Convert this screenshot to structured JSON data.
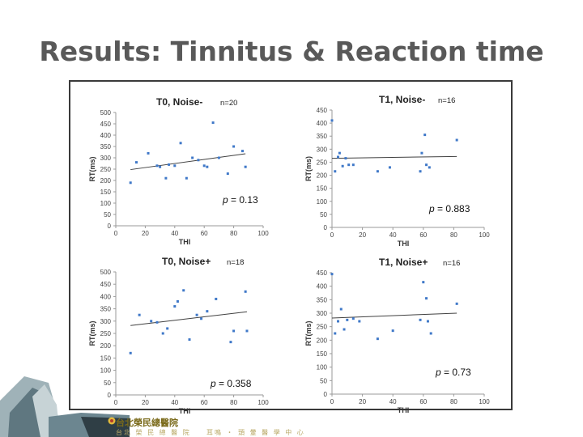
{
  "slide": {
    "title": "Results: Tinnitus & Reaction time",
    "hospital_name": "台北榮民總醫院",
    "hospital_sub": "台北 榮 民 總 醫 院",
    "hospital_sub2": "耳鳴 ・ 頭 暈 醫 學 中 心"
  },
  "chart_data": [
    {
      "type": "scatter",
      "title": "T0, Noise-",
      "n_label": "n=20",
      "p_prefix": "p",
      "p_value": "= 0.13",
      "xlabel": "THI",
      "ylabel": "RT(ms)",
      "xlim": [
        0,
        100
      ],
      "ylim": [
        0,
        500
      ],
      "xticks": [
        0,
        20,
        40,
        60,
        80,
        100
      ],
      "yticks": [
        0,
        50,
        100,
        150,
        200,
        250,
        300,
        350,
        400,
        450,
        500
      ],
      "points": [
        [
          10,
          190
        ],
        [
          14,
          280
        ],
        [
          22,
          320
        ],
        [
          28,
          265
        ],
        [
          30,
          260
        ],
        [
          34,
          210
        ],
        [
          36,
          270
        ],
        [
          40,
          265
        ],
        [
          44,
          365
        ],
        [
          48,
          210
        ],
        [
          52,
          300
        ],
        [
          56,
          290
        ],
        [
          60,
          265
        ],
        [
          62,
          260
        ],
        [
          66,
          455
        ],
        [
          70,
          300
        ],
        [
          76,
          230
        ],
        [
          80,
          350
        ],
        [
          86,
          330
        ],
        [
          88,
          260
        ]
      ],
      "trendline": [
        [
          10,
          248
        ],
        [
          88,
          318
        ]
      ]
    },
    {
      "type": "scatter",
      "title": "T1, Noise-",
      "n_label": "n=16",
      "p_prefix": "p",
      "p_value": "= 0.883",
      "xlabel": "THI",
      "ylabel": "RT(ms)",
      "xlim": [
        0,
        100
      ],
      "ylim": [
        0,
        450
      ],
      "xticks": [
        0,
        20,
        40,
        60,
        80,
        100
      ],
      "yticks": [
        0,
        50,
        100,
        150,
        200,
        250,
        300,
        350,
        400,
        450
      ],
      "points": [
        [
          0,
          410
        ],
        [
          2,
          215
        ],
        [
          4,
          270
        ],
        [
          5,
          285
        ],
        [
          7,
          235
        ],
        [
          9,
          265
        ],
        [
          11,
          240
        ],
        [
          14,
          240
        ],
        [
          30,
          215
        ],
        [
          38,
          230
        ],
        [
          58,
          215
        ],
        [
          59,
          285
        ],
        [
          61,
          355
        ],
        [
          62,
          240
        ],
        [
          64,
          230
        ],
        [
          82,
          335
        ]
      ],
      "trendline": [
        [
          0,
          265
        ],
        [
          82,
          272
        ]
      ]
    },
    {
      "type": "scatter",
      "title": "T0, Noise+",
      "n_label": "n=18",
      "p_prefix": "p",
      "p_value": "= 0.358",
      "xlabel": "THI",
      "ylabel": "RT(ms)",
      "xlim": [
        0,
        100
      ],
      "ylim": [
        0,
        500
      ],
      "xticks": [
        0,
        20,
        40,
        60,
        80,
        100
      ],
      "yticks": [
        0,
        50,
        100,
        150,
        200,
        250,
        300,
        350,
        400,
        450,
        500
      ],
      "points": [
        [
          10,
          170
        ],
        [
          16,
          325
        ],
        [
          24,
          300
        ],
        [
          28,
          295
        ],
        [
          32,
          250
        ],
        [
          35,
          270
        ],
        [
          40,
          360
        ],
        [
          42,
          380
        ],
        [
          46,
          425
        ],
        [
          50,
          225
        ],
        [
          55,
          325
        ],
        [
          58,
          310
        ],
        [
          62,
          340
        ],
        [
          68,
          390
        ],
        [
          78,
          215
        ],
        [
          80,
          260
        ],
        [
          88,
          420
        ],
        [
          89,
          260
        ]
      ],
      "trendline": [
        [
          10,
          282
        ],
        [
          89,
          338
        ]
      ]
    },
    {
      "type": "scatter",
      "title": "T1, Noise+",
      "n_label": "n=16",
      "p_prefix": "p",
      "p_value": "= 0.73",
      "xlabel": "THI",
      "ylabel": "RT(ms)",
      "xlim": [
        0,
        100
      ],
      "ylim": [
        0,
        450
      ],
      "xticks": [
        0,
        20,
        40,
        60,
        80,
        100
      ],
      "yticks": [
        0,
        50,
        100,
        150,
        200,
        250,
        300,
        350,
        400,
        450
      ],
      "points": [
        [
          0,
          445
        ],
        [
          2,
          225
        ],
        [
          4,
          270
        ],
        [
          6,
          315
        ],
        [
          8,
          240
        ],
        [
          10,
          275
        ],
        [
          14,
          280
        ],
        [
          18,
          270
        ],
        [
          30,
          205
        ],
        [
          40,
          235
        ],
        [
          58,
          275
        ],
        [
          60,
          415
        ],
        [
          62,
          355
        ],
        [
          63,
          270
        ],
        [
          65,
          225
        ],
        [
          82,
          335
        ]
      ],
      "trendline": [
        [
          0,
          282
        ],
        [
          82,
          300
        ]
      ]
    }
  ],
  "colors": {
    "title": "#595959",
    "points": "#3f78c8",
    "trend": "#404040",
    "axis": "#9a9a9a",
    "border": "#3a3a3a"
  }
}
